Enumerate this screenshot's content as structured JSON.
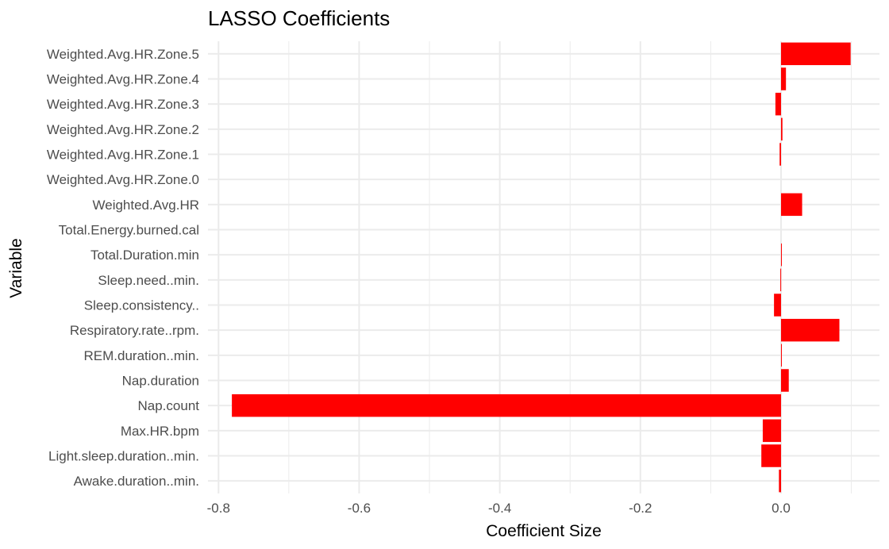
{
  "chart_data": {
    "type": "bar",
    "orientation": "horizontal",
    "title": "LASSO Coefficients",
    "xlabel": "Coefficient Size",
    "ylabel": "Variable",
    "xlim": [
      -0.815,
      0.14
    ],
    "xticks": [
      -0.8,
      -0.6,
      -0.4,
      -0.2,
      0.0
    ],
    "xtick_labels": [
      "-0.8",
      "-0.6",
      "-0.4",
      "-0.2",
      "0.0"
    ],
    "grid": true,
    "legend": "none",
    "bar_color": "#ff0000",
    "categories": [
      "Weighted.Avg.HR.Zone.5",
      "Weighted.Avg.HR.Zone.4",
      "Weighted.Avg.HR.Zone.3",
      "Weighted.Avg.HR.Zone.2",
      "Weighted.Avg.HR.Zone.1",
      "Weighted.Avg.HR.Zone.0",
      "Weighted.Avg.HR",
      "Total.Energy.burned.cal",
      "Total.Duration.min",
      "Sleep.need..min.",
      "Sleep.consistency..",
      "Respiratory.rate..rpm.",
      "REM.duration..min.",
      "Nap.duration",
      "Nap.count",
      "Max.HR.bpm",
      "Light.sleep.duration..min.",
      "Awake.duration..min."
    ],
    "values": [
      0.099,
      0.007,
      -0.008,
      0.002,
      -0.002,
      0.0,
      0.03,
      0.0,
      0.001,
      -0.001,
      -0.01,
      0.083,
      0.0005,
      0.011,
      -0.781,
      -0.026,
      -0.028,
      -0.003
    ]
  }
}
